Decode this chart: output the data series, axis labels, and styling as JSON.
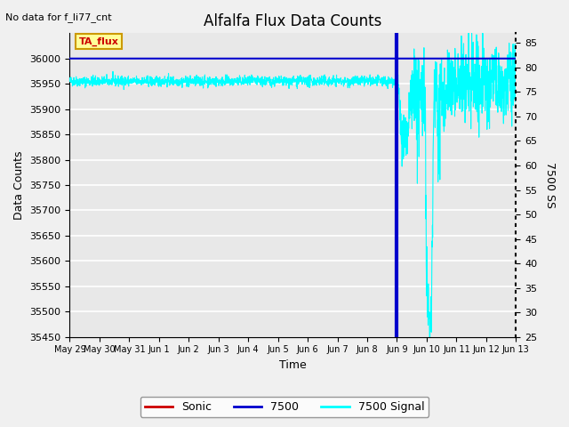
{
  "title": "Alfalfa Flux Data Counts",
  "subtitle": "No data for f_li77_cnt",
  "xlabel": "Time",
  "ylabel_left": "Data Counts",
  "ylabel_right": "7500 SS",
  "annotation_box": "TA_flux",
  "ylim_left": [
    35450,
    36050
  ],
  "ylim_right": [
    25,
    87
  ],
  "yticks_left": [
    35450,
    35500,
    35550,
    35600,
    35650,
    35700,
    35750,
    35800,
    35850,
    35900,
    35950,
    36000
  ],
  "yticks_right": [
    25,
    30,
    35,
    40,
    45,
    50,
    55,
    60,
    65,
    70,
    75,
    80,
    85
  ],
  "tick_labels": [
    "May 29",
    "May 30",
    "May 31",
    "Jun 1",
    "Jun 2",
    "Jun 3",
    "Jun 4",
    "Jun 5",
    "Jun 6",
    "Jun 7",
    "Jun 8",
    "Jun 9",
    "Jun 10",
    "Jun 11",
    "Jun 12",
    "Jun 13"
  ],
  "bg_color": "#e8e8e8",
  "grid_color": "#ffffff",
  "line_color_7500": "#0000cc",
  "line_color_cyan": "#00ffff",
  "line_color_sonic": "#cc0000",
  "legend_labels": [
    "Sonic",
    "7500",
    "7500 Signal"
  ],
  "legend_colors": [
    "#cc0000",
    "#0000cc",
    "#00ffff"
  ],
  "fig_width": 6.4,
  "fig_height": 4.8,
  "dpi": 100
}
